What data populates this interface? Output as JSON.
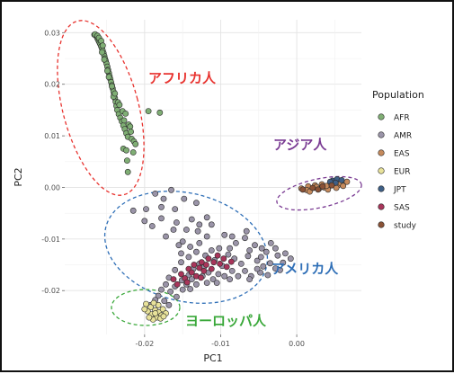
{
  "chart_data": {
    "type": "scatter",
    "xlabel": "PC1",
    "ylabel": "PC2",
    "xlim": [
      -0.0305,
      0.0085
    ],
    "ylim": [
      -0.0285,
      0.0325
    ],
    "xticks": [
      -0.02,
      -0.01,
      0.0
    ],
    "xtick_labels": [
      "-0.02",
      "-0.01",
      "0.00"
    ],
    "yticks": [
      -0.02,
      -0.01,
      0.0,
      0.01,
      0.02,
      0.03
    ],
    "ytick_labels": [
      "-0.02",
      "-0.01",
      "0.00",
      "0.01",
      "0.02",
      "0.03"
    ],
    "grid": true,
    "legend": {
      "title": "Population",
      "placement": "right"
    },
    "series": [
      {
        "name": "AFR",
        "color": "#7fae74",
        "points": [
          [
            -0.0264,
            0.0295
          ],
          [
            -0.0263,
            0.0292
          ],
          [
            -0.0262,
            0.0289
          ],
          [
            -0.0261,
            0.0286
          ],
          [
            -0.026,
            0.0283
          ],
          [
            -0.0259,
            0.028
          ],
          [
            -0.0258,
            0.0277
          ],
          [
            -0.0257,
            0.0273
          ],
          [
            -0.0256,
            0.0269
          ],
          [
            -0.0255,
            0.0265
          ],
          [
            -0.0254,
            0.026
          ],
          [
            -0.0253,
            0.0255
          ],
          [
            -0.0252,
            0.025
          ],
          [
            -0.0251,
            0.0245
          ],
          [
            -0.025,
            0.024
          ],
          [
            -0.0249,
            0.0234
          ],
          [
            -0.0248,
            0.0228
          ],
          [
            -0.0247,
            0.0222
          ],
          [
            -0.0246,
            0.0216
          ],
          [
            -0.0245,
            0.021
          ],
          [
            -0.0244,
            0.0204
          ],
          [
            -0.0243,
            0.0198
          ],
          [
            -0.0242,
            0.0192
          ],
          [
            -0.0241,
            0.0186
          ],
          [
            -0.024,
            0.018
          ],
          [
            -0.0239,
            0.0173
          ],
          [
            -0.0238,
            0.0166
          ],
          [
            -0.0237,
            0.0158
          ],
          [
            -0.0236,
            0.015
          ],
          [
            -0.0234,
            0.0142
          ],
          [
            -0.0232,
            0.0135
          ],
          [
            -0.023,
            0.0128
          ],
          [
            -0.0228,
            0.012
          ],
          [
            -0.0226,
            0.0113
          ],
          [
            -0.0224,
            0.0105
          ],
          [
            -0.0222,
            0.0098
          ],
          [
            -0.0266,
            0.0296
          ],
          [
            -0.0265,
            0.0297
          ],
          [
            -0.0262,
            0.0294
          ],
          [
            -0.026,
            0.029
          ],
          [
            -0.0257,
            0.0284
          ],
          [
            -0.0255,
            0.0275
          ],
          [
            -0.0256,
            0.0262
          ],
          [
            -0.0253,
            0.0248
          ],
          [
            -0.0249,
            0.0226
          ],
          [
            -0.0247,
            0.0214
          ],
          [
            -0.0243,
            0.0196
          ],
          [
            -0.0241,
            0.0176
          ],
          [
            -0.0239,
            0.0182
          ],
          [
            -0.0235,
            0.0165
          ],
          [
            -0.0233,
            0.016
          ],
          [
            -0.0229,
            0.0148
          ],
          [
            -0.0225,
            0.0143
          ],
          [
            -0.0227,
            0.013
          ],
          [
            -0.0221,
            0.0122
          ],
          [
            -0.0219,
            0.0118
          ],
          [
            -0.0218,
            0.0108
          ],
          [
            -0.0217,
            0.0094
          ],
          [
            -0.0214,
            0.0089
          ],
          [
            -0.0212,
            0.0084
          ],
          [
            -0.0228,
            0.0075
          ],
          [
            -0.0224,
            0.0072
          ],
          [
            -0.0215,
            0.0068
          ],
          [
            -0.0223,
            0.0052
          ],
          [
            -0.0222,
            0.003
          ],
          [
            -0.0195,
            0.0148
          ],
          [
            -0.018,
            0.0145
          ]
        ]
      },
      {
        "name": "AMR",
        "color": "#9a94a8",
        "points": [
          [
            -0.0215,
            -0.0045
          ],
          [
            -0.02,
            -0.0065
          ],
          [
            -0.0178,
            -0.0038
          ],
          [
            -0.016,
            -0.0042
          ],
          [
            -0.019,
            -0.0075
          ],
          [
            -0.0172,
            -0.0095
          ],
          [
            -0.015,
            -0.0105
          ],
          [
            -0.013,
            -0.0085
          ],
          [
            -0.0112,
            -0.0072
          ],
          [
            -0.0095,
            -0.0092
          ],
          [
            -0.008,
            -0.0108
          ],
          [
            -0.0068,
            -0.0098
          ],
          [
            -0.0055,
            -0.0112
          ],
          [
            -0.004,
            -0.0125
          ],
          [
            -0.0025,
            -0.0132
          ],
          [
            -0.0018,
            -0.0146
          ],
          [
            -0.0165,
            -0.0005
          ],
          [
            -0.0148,
            -0.0022
          ],
          [
            -0.0132,
            -0.003
          ],
          [
            -0.0178,
            -0.006
          ],
          [
            -0.0158,
            -0.0068
          ],
          [
            -0.0138,
            -0.0062
          ],
          [
            -0.0112,
            -0.0122
          ],
          [
            -0.0108,
            -0.0141
          ],
          [
            -0.0098,
            -0.0152
          ],
          [
            -0.009,
            -0.013
          ],
          [
            -0.0082,
            -0.0138
          ],
          [
            -0.0073,
            -0.0148
          ],
          [
            -0.0064,
            -0.0133
          ],
          [
            -0.0052,
            -0.0142
          ],
          [
            -0.0044,
            -0.0153
          ],
          [
            -0.0035,
            -0.0147
          ],
          [
            -0.0028,
            -0.0157
          ],
          [
            -0.012,
            -0.0132
          ],
          [
            -0.0128,
            -0.0148
          ],
          [
            -0.0136,
            -0.0158
          ],
          [
            -0.0142,
            -0.017
          ],
          [
            -0.0151,
            -0.018
          ],
          [
            -0.016,
            -0.0192
          ],
          [
            -0.0166,
            -0.0202
          ],
          [
            -0.0158,
            -0.0212
          ],
          [
            -0.015,
            -0.0198
          ],
          [
            -0.0145,
            -0.0188
          ],
          [
            -0.0124,
            -0.0172
          ],
          [
            -0.0116,
            -0.0165
          ],
          [
            -0.0103,
            -0.0168
          ],
          [
            -0.0095,
            -0.0172
          ],
          [
            -0.0085,
            -0.0162
          ],
          [
            -0.0077,
            -0.0172
          ],
          [
            -0.0068,
            -0.0162
          ],
          [
            -0.006,
            -0.0172
          ],
          [
            -0.0048,
            -0.0165
          ],
          [
            -0.0038,
            -0.017
          ],
          [
            -0.0122,
            -0.0155
          ],
          [
            -0.0132,
            -0.0125
          ],
          [
            -0.014,
            -0.0115
          ],
          [
            -0.0102,
            -0.0118
          ],
          [
            -0.0088,
            -0.0118
          ],
          [
            -0.0062,
            -0.0122
          ],
          [
            -0.0047,
            -0.0135
          ],
          [
            -0.0118,
            -0.0095
          ],
          [
            -0.0085,
            -0.0095
          ],
          [
            -0.0066,
            -0.0085
          ],
          [
            -0.0152,
            -0.0145
          ],
          [
            -0.016,
            -0.016
          ],
          [
            -0.0168,
            -0.0175
          ],
          [
            -0.0172,
            -0.0188
          ],
          [
            -0.0178,
            -0.0198
          ],
          [
            -0.0182,
            -0.021
          ],
          [
            -0.0174,
            -0.022
          ],
          [
            -0.0168,
            -0.0228
          ],
          [
            -0.0186,
            -0.0218
          ],
          [
            -0.0192,
            -0.0228
          ],
          [
            -0.0128,
            -0.0108
          ],
          [
            -0.0152,
            -0.0128
          ],
          [
            -0.0142,
            -0.0135
          ],
          [
            -0.0028,
            -0.0118
          ],
          [
            -0.0015,
            -0.0128
          ],
          [
            -0.0008,
            -0.0138
          ],
          [
            -0.0022,
            -0.016
          ],
          [
            -0.011,
            -0.0178
          ],
          [
            -0.0132,
            -0.0188
          ],
          [
            -0.014,
            -0.0197
          ],
          [
            -0.0138,
            -0.0178
          ],
          [
            -0.0155,
            -0.0112
          ],
          [
            -0.0118,
            -0.0185
          ],
          [
            -0.0105,
            -0.0185
          ],
          [
            -0.0088,
            -0.0178
          ],
          [
            -0.0062,
            -0.0178
          ],
          [
            -0.0052,
            -0.0158
          ],
          [
            -0.0046,
            -0.0118
          ],
          [
            -0.0034,
            -0.0108
          ],
          [
            -0.0118,
            -0.0058
          ],
          [
            -0.0128,
            -0.0072
          ],
          [
            -0.0145,
            -0.0082
          ],
          [
            -0.0162,
            -0.0082
          ],
          [
            -0.0175,
            -0.0022
          ],
          [
            -0.0186,
            -0.0012
          ],
          [
            -0.0198,
            -0.0042
          ]
        ]
      },
      {
        "name": "EAS",
        "color": "#c58a5c",
        "points": [
          [
            0.0015,
            0.0002
          ],
          [
            0.0022,
            -0.0001
          ],
          [
            0.0029,
            -0.0003
          ],
          [
            0.0036,
            0.0
          ],
          [
            0.0042,
            0.0002
          ],
          [
            0.0049,
            0.0005
          ],
          [
            0.0054,
            0.0004
          ],
          [
            0.0006,
            -0.0002
          ],
          [
            0.0013,
            -0.0005
          ],
          [
            0.0024,
            0.0004
          ],
          [
            0.0033,
            0.0006
          ],
          [
            0.0045,
            0.0007
          ],
          [
            0.0058,
            0.0008
          ],
          [
            0.0066,
            0.0011
          ],
          [
            0.0041,
            -0.0004
          ],
          [
            0.0052,
            -0.0001
          ],
          [
            0.0017,
            -0.0008
          ],
          [
            0.0061,
            0.0003
          ],
          [
            0.0026,
            0.0001
          ],
          [
            0.0039,
            0.0003
          ]
        ]
      },
      {
        "name": "EUR",
        "color": "#e8e29a",
        "points": [
          [
            -0.0192,
            -0.0232
          ],
          [
            -0.0186,
            -0.0238
          ],
          [
            -0.0181,
            -0.0242
          ],
          [
            -0.0178,
            -0.0248
          ],
          [
            -0.0184,
            -0.0252
          ],
          [
            -0.0191,
            -0.0246
          ],
          [
            -0.0196,
            -0.024
          ],
          [
            -0.0189,
            -0.0256
          ],
          [
            -0.0176,
            -0.0236
          ],
          [
            -0.0182,
            -0.0228
          ],
          [
            -0.0198,
            -0.0226
          ],
          [
            -0.0172,
            -0.0244
          ],
          [
            -0.0188,
            -0.0224
          ],
          [
            -0.0194,
            -0.0252
          ],
          [
            -0.0179,
            -0.0254
          ],
          [
            -0.0186,
            -0.0244
          ],
          [
            -0.0175,
            -0.025
          ],
          [
            -0.02,
            -0.0236
          ]
        ]
      },
      {
        "name": "JPT",
        "color": "#3e5f86",
        "points": [
          [
            0.0047,
            0.0013
          ],
          [
            0.0053,
            0.0016
          ],
          [
            0.0059,
            0.0014
          ],
          [
            0.0051,
            0.0009
          ],
          [
            0.0044,
            0.0011
          ]
        ]
      },
      {
        "name": "SAS",
        "color": "#a8355a",
        "points": [
          [
            -0.0162,
            -0.0178
          ],
          [
            -0.0152,
            -0.0168
          ],
          [
            -0.0142,
            -0.0158
          ],
          [
            -0.0135,
            -0.015
          ],
          [
            -0.0125,
            -0.0145
          ],
          [
            -0.0116,
            -0.0138
          ],
          [
            -0.0104,
            -0.0132
          ],
          [
            -0.0096,
            -0.0138
          ],
          [
            -0.0086,
            -0.0144
          ],
          [
            -0.0147,
            -0.0176
          ],
          [
            -0.0138,
            -0.0165
          ],
          [
            -0.0128,
            -0.0156
          ],
          [
            -0.0119,
            -0.015
          ],
          [
            -0.0109,
            -0.0145
          ],
          [
            -0.0132,
            -0.0172
          ],
          [
            -0.0122,
            -0.0162
          ],
          [
            -0.0112,
            -0.0158
          ],
          [
            -0.0101,
            -0.0148
          ],
          [
            -0.0157,
            -0.0188
          ],
          [
            -0.0144,
            -0.0184
          ],
          [
            -0.0126,
            -0.0175
          ],
          [
            -0.0092,
            -0.0154
          ]
        ]
      },
      {
        "name": "study",
        "color": "#8a5236",
        "points": [
          [
            0.0021,
            -0.0001
          ],
          [
            0.0034,
            0.0002
          ],
          [
            0.0046,
            0.0004
          ],
          [
            0.0028,
            -0.0004
          ],
          [
            0.0008,
            -0.0004
          ]
        ]
      }
    ],
    "annotations": [
      {
        "text": "アフリカ人",
        "color": "#e8332f"
      },
      {
        "text": "アジア人",
        "color": "#7a3b93"
      },
      {
        "text": "アメリカ人",
        "color": "#2f6fb7"
      },
      {
        "text": "ヨーロッパ人",
        "color": "#3aa83a"
      }
    ]
  }
}
